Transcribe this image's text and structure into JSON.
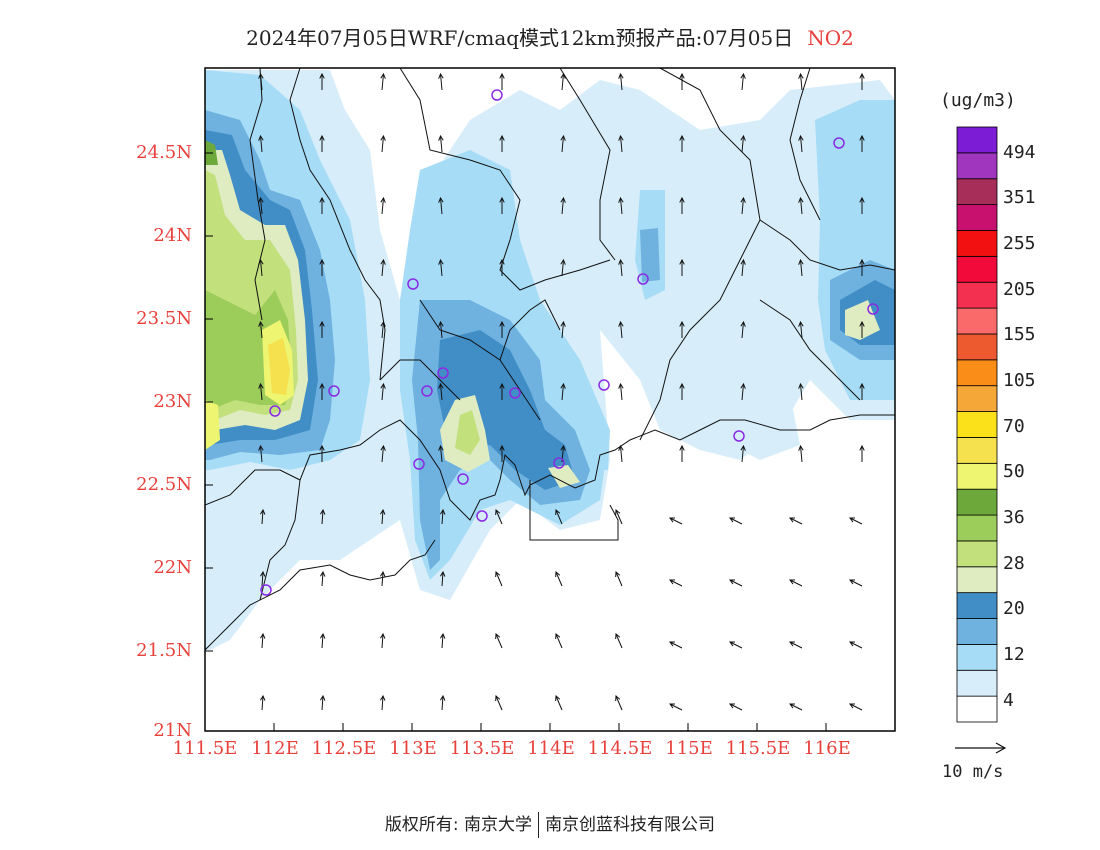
{
  "title": {
    "main": "2024年07月05日WRF/cmaq模式12km预报产品:07月05日",
    "species": "NO2"
  },
  "colors": {
    "label_red": "#e8413c",
    "frame": "#000000"
  },
  "axes": {
    "lat_labels": [
      "24.5N",
      "24N",
      "23.5N",
      "23N",
      "22.5N",
      "22N",
      "21.5N",
      "21N"
    ],
    "lon_labels": [
      "111.5E",
      "112E",
      "112.5E",
      "113E",
      "113.5E",
      "114E",
      "114.5E",
      "115E",
      "115.5E",
      "116E"
    ]
  },
  "colorbar": {
    "unit": "(ug/m3)",
    "labels": [
      "494",
      "351",
      "255",
      "205",
      "155",
      "105",
      "70",
      "50",
      "36",
      "28",
      "20",
      "12",
      "4"
    ],
    "colors": [
      "#ffffff",
      "#d7eefa",
      "#a6dcf5",
      "#6fb2e0",
      "#418ec6",
      "#dfecc2",
      "#c2e07c",
      "#9ccc5a",
      "#6ca83a",
      "#eef570",
      "#f5e04e",
      "#fbe11a",
      "#f5a838",
      "#fa8c18",
      "#ee5a30",
      "#fa6a6a",
      "#f33050",
      "#f20a3a",
      "#f21010",
      "#c8106e",
      "#a82e5a",
      "#a036be",
      "#7c1cd4"
    ]
  },
  "wind_reference": {
    "label": "10 m/s"
  },
  "footer": {
    "left": "版权所有: 南京大学",
    "right": "南京创蓝科技有限公司"
  }
}
